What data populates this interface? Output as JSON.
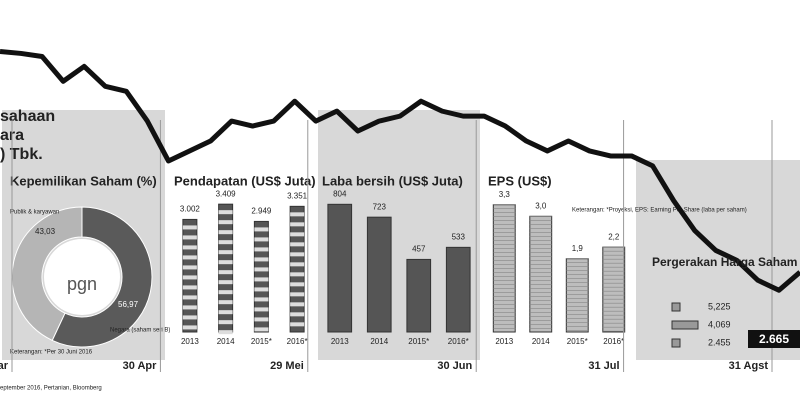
{
  "chart_data": [
    {
      "type": "line",
      "title": "Pergerakan Harga Saham",
      "heading_lines": [
        "sahaan",
        "ara",
        ") Tbk."
      ],
      "categories": [
        "Mar",
        null,
        null,
        null,
        null,
        null,
        null,
        null,
        "30 Apr",
        null,
        null,
        null,
        null,
        null,
        null,
        "29 Mei",
        null,
        null,
        null,
        null,
        null,
        null,
        null,
        "30 Jun",
        null,
        null,
        null,
        null,
        null,
        null,
        "31 Jul",
        null,
        null,
        null,
        null,
        null,
        null,
        null,
        "31 Agst"
      ],
      "values": [
        5225,
        5202,
        5167,
        4879,
        5052,
        4821,
        4763,
        4417,
        3955,
        4071,
        4186,
        4417,
        4360,
        4417,
        4648,
        4417,
        4533,
        4302,
        4417,
        4475,
        4648,
        4533,
        4475,
        4475,
        4360,
        4186,
        4071,
        4186,
        4071,
        4013,
        4013,
        3898,
        3494,
        3148,
        2917,
        2802,
        2571,
        2455,
        2665
      ],
      "color": "#111111",
      "ylim": [
        2400,
        5300
      ],
      "stats": {
        "values": [
          5225,
          4069,
          2455
        ],
        "value_labels": [
          "5,225",
          "4,069",
          "2.455"
        ]
      },
      "last": {
        "value": 2665,
        "label": "2.665"
      },
      "source": "eptember 2016, Pertanian, Bloomberg"
    },
    {
      "type": "pie",
      "title": "Kepemilikan Saham (%)",
      "logo": "pgn",
      "categories": [
        "Publik & karyawan",
        "Negara (saham seri B)"
      ],
      "values": [
        43.03,
        56.97
      ],
      "value_labels": [
        "43,03",
        "56,97"
      ],
      "colors": [
        "#b5b5b5",
        "#5a5a5a"
      ],
      "note": "Keterangan: *Per 30 Juni 2016"
    },
    {
      "type": "bar",
      "title": "Pendapatan (US$ Juta)",
      "categories": [
        "2013",
        "2014",
        "2015*",
        "2016*"
      ],
      "values": [
        3002,
        3409,
        2949,
        3351
      ],
      "value_labels": [
        "3.002",
        "3.409",
        "2.949",
        "3.351"
      ],
      "color": "#555555",
      "ylim": [
        0,
        3600
      ]
    },
    {
      "type": "bar",
      "title": "Laba bersih (US$ Juta)",
      "categories": [
        "2013",
        "2014",
        "2015*",
        "2016*"
      ],
      "values": [
        804,
        723,
        457,
        533
      ],
      "color": "#555555",
      "ylim": [
        0,
        850
      ]
    },
    {
      "type": "bar",
      "title": "EPS (US$)",
      "categories": [
        "2013",
        "2014",
        "2015*",
        "2016*"
      ],
      "values": [
        3.3,
        3.0,
        1.9,
        2.2
      ],
      "value_labels": [
        "3,3",
        "3,0",
        "1,9",
        "2,2"
      ],
      "color": "#bdbdbd",
      "ylim": [
        0,
        3.5
      ],
      "note": "Keterangan: *Proyeksi, EPS: Earning Per Share (laba per saham)"
    }
  ]
}
